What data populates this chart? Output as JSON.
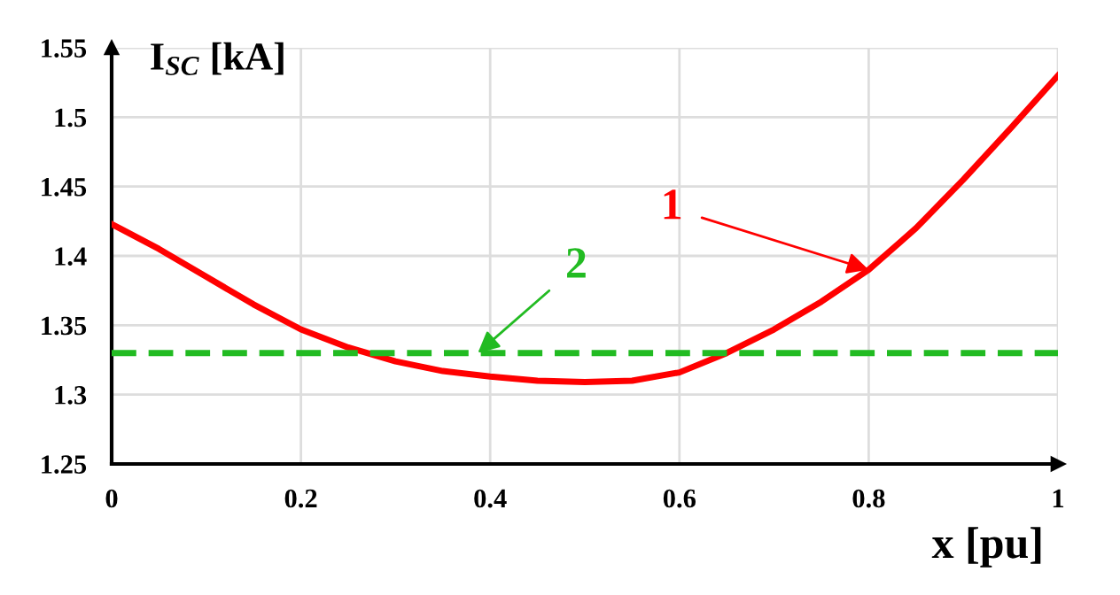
{
  "chart_data": {
    "type": "line",
    "ylabel": "I$_{SC}$ [kA]",
    "xlabel": "x [pu]",
    "xlim": [
      0,
      1
    ],
    "ylim": [
      1.25,
      1.55
    ],
    "xticks": [
      0,
      0.2,
      0.4,
      0.6,
      0.8,
      1
    ],
    "yticks": [
      1.25,
      1.3,
      1.35,
      1.4,
      1.45,
      1.5,
      1.55
    ],
    "grid": true,
    "marker": "none",
    "series": [
      {
        "color": "#ff0000",
        "line_style": "solid",
        "x": [
          0,
          0.05,
          0.1,
          0.15,
          0.2,
          0.25,
          0.3,
          0.35,
          0.4,
          0.45,
          0.5,
          0.55,
          0.6,
          0.65,
          0.7,
          0.75,
          0.8,
          0.85,
          0.9,
          0.95,
          1
        ],
        "values": [
          1.423,
          1.405,
          1.385,
          1.365,
          1.347,
          1.334,
          1.324,
          1.317,
          1.313,
          1.31,
          1.309,
          1.31,
          1.316,
          1.33,
          1.347,
          1.367,
          1.39,
          1.42,
          1.455,
          1.492,
          1.53
        ]
      },
      {
        "color": "#22bb22",
        "line_style": "dashed",
        "x": [
          0,
          1
        ],
        "values": [
          1.33,
          1.33
        ]
      }
    ],
    "annotations": [
      {
        "text": "1",
        "x": 0.8,
        "y": 1.39
      },
      {
        "text": "2",
        "x": 0.387,
        "y": 1.33
      }
    ]
  }
}
